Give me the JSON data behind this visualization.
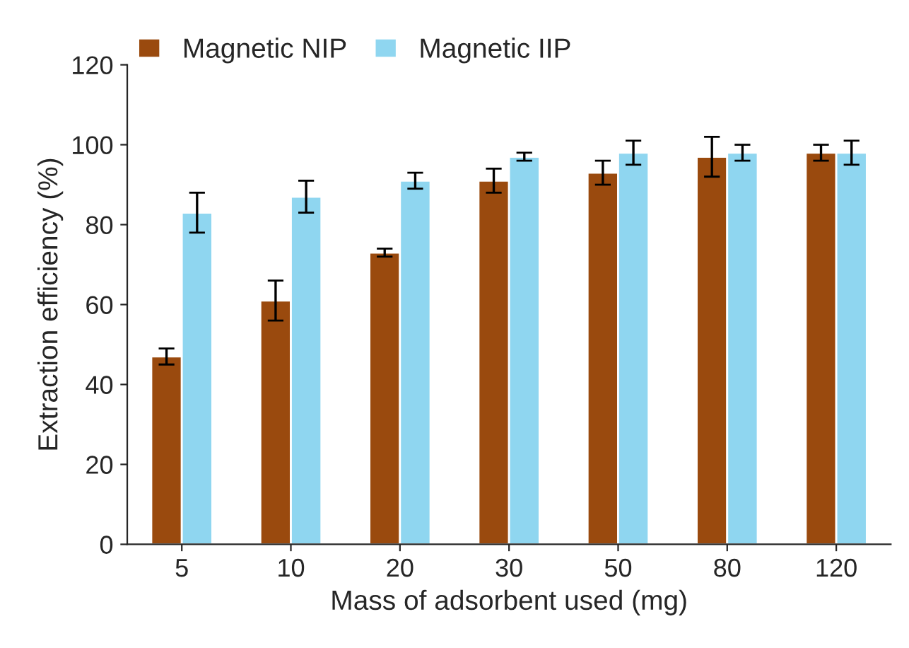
{
  "chart_data": {
    "type": "bar",
    "xlabel": "Mass of adsorbent used (mg)",
    "ylabel": "Extraction efficiency (%)",
    "categories": [
      "5",
      "10",
      "20",
      "30",
      "50",
      "80",
      "120"
    ],
    "series": [
      {
        "name": "Magnetic NIP",
        "color": "#9a4a0e",
        "values": [
          47,
          61,
          73,
          91,
          93,
          97,
          98
        ],
        "errors": [
          2,
          5,
          1,
          3,
          3,
          5,
          2
        ]
      },
      {
        "name": "Magnetic IIP",
        "color": "#8fd6f0",
        "values": [
          83,
          87,
          91,
          97,
          98,
          98,
          98
        ],
        "errors": [
          5,
          4,
          2,
          1,
          3,
          2,
          3
        ]
      }
    ],
    "ylim": [
      0,
      120
    ],
    "yticks": [
      0,
      20,
      40,
      60,
      80,
      100,
      120
    ],
    "grid": false,
    "legend": "top left"
  }
}
